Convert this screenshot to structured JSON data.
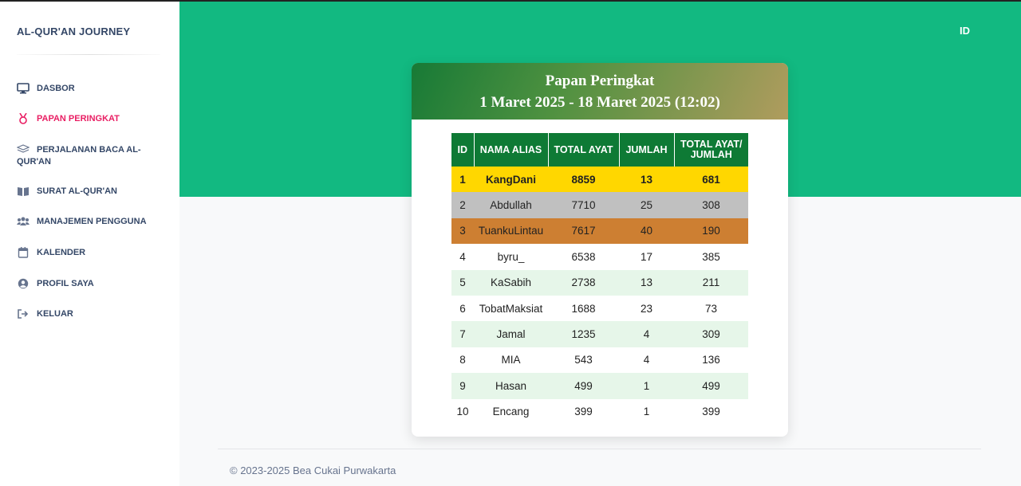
{
  "sidebar": {
    "brand": "AL-QUR'AN JOURNEY",
    "items": [
      {
        "label": "DASBOR",
        "icon": "monitor-icon",
        "active": false
      },
      {
        "label": "PAPAN PERINGKAT",
        "icon": "medal-icon",
        "active": true
      },
      {
        "label": "PERJALANAN BACA AL-QUR'AN",
        "icon": "layers-icon",
        "active": false
      },
      {
        "label": "SURAT AL-QUR'AN",
        "icon": "book-open-icon",
        "active": false
      },
      {
        "label": "MANAJEMEN PENGGUNA",
        "icon": "users-icon",
        "active": false
      },
      {
        "label": "KALENDER",
        "icon": "calendar-icon",
        "active": false
      },
      {
        "label": "PROFIL SAYA",
        "icon": "user-circle-icon",
        "active": false
      },
      {
        "label": "KELUAR",
        "icon": "logout-icon",
        "active": false
      }
    ]
  },
  "header": {
    "language": "ID"
  },
  "leaderboard": {
    "title": "Papan Peringkat",
    "period": "1 Maret 2025 - 18 Maret 2025 (12:02)",
    "columns": [
      "ID",
      "NAMA ALIAS",
      "TOTAL AYAT",
      "JUMLAH",
      "TOTAL AYAT/ JUMLAH"
    ],
    "rows": [
      [
        "1",
        "KangDani",
        "8859",
        "13",
        "681"
      ],
      [
        "2",
        "Abdullah",
        "7710",
        "25",
        "308"
      ],
      [
        "3",
        "TuankuLintau",
        "7617",
        "40",
        "190"
      ],
      [
        "4",
        "byru_",
        "6538",
        "17",
        "385"
      ],
      [
        "5",
        "KaSabih",
        "2738",
        "13",
        "211"
      ],
      [
        "6",
        "TobatMaksiat",
        "1688",
        "23",
        "73"
      ],
      [
        "7",
        "Jamal",
        "1235",
        "4",
        "309"
      ],
      [
        "8",
        "MIA",
        "543",
        "4",
        "136"
      ],
      [
        "9",
        "Hasan",
        "499",
        "1",
        "499"
      ],
      [
        "10",
        "Encang",
        "399",
        "1",
        "399"
      ]
    ]
  },
  "footer": {
    "copyright": "© 2023-2025 Bea Cukai Purwakarta"
  },
  "colors": {
    "hero": "#12b981",
    "table_header": "#0e7a35",
    "gold": "#ffd700",
    "silver": "#c0c0c0",
    "bronze": "#cd7f32",
    "alt_row": "#e6f6e9",
    "active_nav": "#e91e63"
  }
}
